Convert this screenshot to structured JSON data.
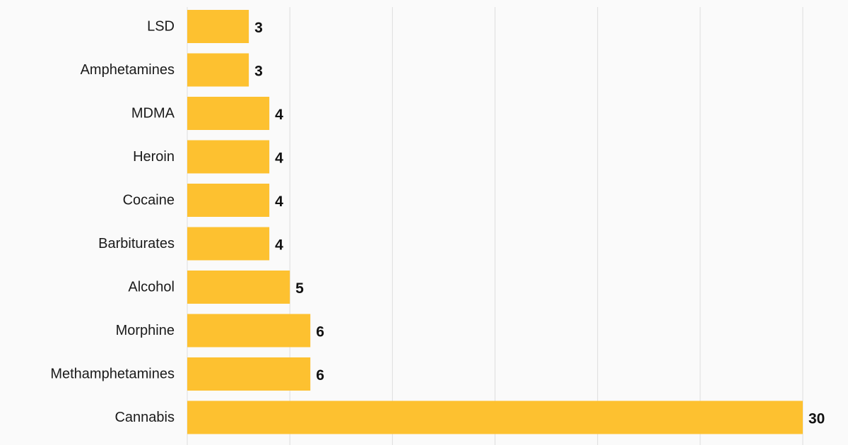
{
  "chart_data": {
    "type": "bar",
    "orientation": "horizontal",
    "categories": [
      "LSD",
      "Amphetamines",
      "MDMA",
      "Heroin",
      "Cocaine",
      "Barbiturates",
      "Alcohol",
      "Morphine",
      "Methamphetamines",
      "Cannabis"
    ],
    "values": [
      3,
      3,
      4,
      4,
      4,
      4,
      5,
      6,
      6,
      30
    ],
    "title": "",
    "xlabel": "",
    "ylabel": "",
    "xlim": [
      0,
      30
    ],
    "grid": true,
    "legend": "none",
    "bar_color": "#fdc130",
    "data_labels": true
  }
}
